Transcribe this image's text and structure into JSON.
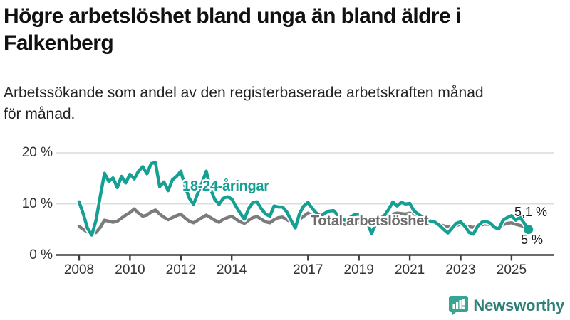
{
  "header": {
    "title": "Högre arbetslöshet bland unga än bland äldre i\nFalkenberg",
    "subtitle": "Arbetssökande som andel av den registerbaserade arbetskraften månad\nför månad."
  },
  "chart_data": {
    "type": "line",
    "title": "Högre arbetslöshet bland unga än bland äldre i Falkenberg",
    "subtitle": "Arbetssökande som andel av den registerbaserade arbetskraften månad för månad.",
    "unit": "%",
    "x_start_year": 2008,
    "points_per_year": 6,
    "ylim": [
      0,
      22
    ],
    "grid": "horizontal",
    "legend_position": "labels-on-chart",
    "yticks": [
      {
        "value": 0,
        "label": "0 %"
      },
      {
        "value": 10,
        "label": "10 %"
      },
      {
        "value": 20,
        "label": "20 %"
      }
    ],
    "xticks": [
      {
        "year": 2008,
        "label": "2008"
      },
      {
        "year": 2010,
        "label": "2010"
      },
      {
        "year": 2012,
        "label": "2012"
      },
      {
        "year": 2014,
        "label": "2014"
      },
      {
        "year": 2017,
        "label": "2017"
      },
      {
        "year": 2019,
        "label": "2019"
      },
      {
        "year": 2021,
        "label": "2021"
      },
      {
        "year": 2023,
        "label": "2023"
      },
      {
        "year": 2025,
        "label": "2025"
      }
    ],
    "series": [
      {
        "name": "18-24-åringar",
        "color": "#16A093",
        "end_label": "5 %",
        "end_value": 5.0,
        "end_dot": true,
        "values": [
          10.4,
          8.0,
          5.2,
          3.9,
          6.8,
          11.5,
          16.0,
          14.4,
          15.1,
          13.2,
          15.4,
          14.1,
          15.8,
          14.9,
          16.4,
          17.3,
          15.9,
          17.9,
          18.1,
          13.4,
          14.3,
          12.6,
          14.7,
          15.4,
          16.4,
          13.4,
          11.1,
          9.9,
          12.1,
          14.1,
          16.4,
          12.9,
          10.9,
          9.9,
          11.1,
          11.4,
          11.0,
          9.5,
          8.2,
          7.0,
          9.1,
          10.3,
          10.4,
          9.0,
          8.0,
          7.6,
          9.6,
          9.4,
          9.4,
          8.4,
          6.8,
          5.3,
          8.1,
          9.6,
          10.3,
          9.1,
          8.2,
          7.6,
          8.2,
          8.6,
          8.7,
          7.8,
          7.1,
          6.7,
          7.4,
          7.9,
          8.0,
          7.2,
          6.4,
          4.2,
          6.1,
          7.1,
          7.7,
          8.9,
          10.4,
          9.6,
          10.3,
          10.0,
          10.1,
          8.6,
          8.0,
          7.4,
          6.9,
          6.6,
          6.4,
          5.8,
          5.0,
          4.3,
          5.3,
          6.2,
          6.5,
          5.6,
          4.4,
          4.1,
          5.6,
          6.4,
          6.6,
          6.2,
          5.4,
          5.1,
          6.8,
          7.3,
          7.7,
          6.8,
          7.4,
          6.2,
          5.0
        ]
      },
      {
        "name": "Total arbetslöshet",
        "color": "#7c7c7c",
        "end_label": "5,1 %",
        "end_value": 5.1,
        "end_dot": false,
        "values": [
          5.6,
          5.0,
          4.5,
          4.2,
          4.4,
          5.4,
          6.8,
          6.6,
          6.4,
          6.6,
          7.2,
          7.8,
          8.3,
          9.0,
          8.2,
          7.6,
          7.8,
          8.4,
          8.8,
          8.0,
          7.4,
          6.9,
          7.3,
          7.7,
          8.0,
          7.2,
          6.6,
          6.3,
          6.8,
          7.3,
          7.8,
          7.3,
          6.8,
          6.4,
          7.0,
          7.3,
          7.6,
          7.0,
          6.5,
          6.2,
          6.8,
          7.3,
          7.5,
          7.0,
          6.5,
          6.3,
          6.9,
          7.3,
          7.4,
          6.9,
          6.5,
          6.4,
          7.0,
          7.6,
          8.2,
          7.6,
          7.0,
          6.6,
          6.8,
          7.0,
          7.0,
          6.6,
          6.2,
          5.9,
          6.1,
          6.3,
          6.4,
          6.1,
          5.8,
          5.5,
          5.8,
          6.2,
          6.6,
          7.2,
          8.0,
          8.2,
          8.1,
          8.0,
          8.2,
          8.0,
          7.8,
          7.4,
          7.0,
          6.6,
          6.3,
          6.0,
          5.7,
          5.5,
          5.6,
          5.8,
          6.0,
          5.8,
          5.5,
          5.4,
          5.7,
          5.9,
          6.1,
          5.9,
          5.6,
          5.5,
          5.9,
          6.2,
          6.3,
          6.0,
          5.8,
          5.6,
          5.1
        ]
      }
    ],
    "colors": {
      "grid": "#dcdcdc",
      "axis": "#3c3c3c",
      "halo": "#ffffff"
    }
  },
  "logo": {
    "text": "Newsworthy",
    "mark_color": "#38A593",
    "text_color": "#2F7F79"
  }
}
